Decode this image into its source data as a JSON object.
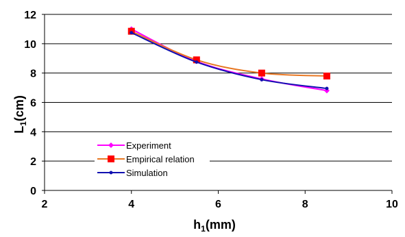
{
  "chart_data": {
    "type": "line",
    "xlabel": {
      "main": "h",
      "sub": "1",
      "unit": "(mm)"
    },
    "ylabel": {
      "main": "L",
      "sub": "1",
      "unit": "(cm)"
    },
    "xlim": [
      2,
      10
    ],
    "ylim": [
      0,
      12
    ],
    "xticks": [
      2,
      4,
      6,
      8,
      10
    ],
    "yticks": [
      0,
      2,
      4,
      6,
      8,
      10,
      12
    ],
    "grid": "horizontal",
    "legend_position": "lower-left",
    "series": [
      {
        "name": "Experiment",
        "color": "#ff00ff",
        "marker": "diamond",
        "x": [
          4,
          5.5,
          7,
          8.5
        ],
        "y": [
          11.0,
          8.8,
          7.6,
          6.8
        ]
      },
      {
        "name": "Empirical relation",
        "color": "#e87722",
        "marker_color": "#ff0000",
        "marker": "square",
        "x": [
          4,
          5.5,
          7,
          8.5
        ],
        "y": [
          10.85,
          8.9,
          8.0,
          7.8
        ]
      },
      {
        "name": "Simulation",
        "color": "#1010b0",
        "marker": "dot",
        "x": [
          4,
          5.5,
          7,
          8.5
        ],
        "y": [
          10.75,
          8.75,
          7.55,
          6.95
        ]
      }
    ]
  }
}
